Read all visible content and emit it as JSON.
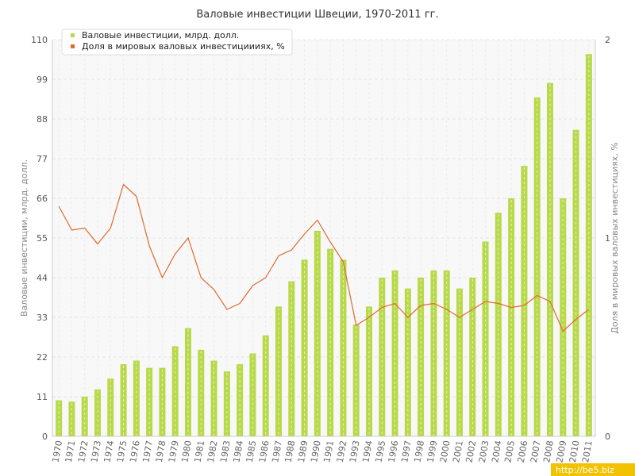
{
  "chart_data": {
    "type": "bar",
    "title": "Валовые инвестиции Швеции, 1970-2011 гг.",
    "ylabel": "Валовые инвестиции, млрд. долл.",
    "y2label": "Доля в мировых валовых инвестициях, %",
    "ylim": [
      0,
      110
    ],
    "y2lim": [
      0,
      2
    ],
    "yticks": [
      "0",
      "11",
      "22",
      "33",
      "44",
      "55",
      "66",
      "77",
      "88",
      "99",
      "110"
    ],
    "y2ticks": [
      "0",
      "1",
      "2"
    ],
    "grid": true,
    "legend_position": "top-left",
    "categories": [
      "1970",
      "1971",
      "1972",
      "1973",
      "1974",
      "1975",
      "1976",
      "1977",
      "1978",
      "1979",
      "1980",
      "1981",
      "1982",
      "1983",
      "1984",
      "1985",
      "1986",
      "1987",
      "1988",
      "1989",
      "1990",
      "1991",
      "1992",
      "1993",
      "1994",
      "1995",
      "1996",
      "1997",
      "1998",
      "1999",
      "2000",
      "2001",
      "2002",
      "2003",
      "2004",
      "2005",
      "2006",
      "2007",
      "2008",
      "2009",
      "2010",
      "2011"
    ],
    "series": [
      {
        "name": "Валовые инвестиции, млрд. долл.",
        "kind": "bar",
        "axis": "left",
        "color": "#b8d94a",
        "values": [
          10,
          9.6,
          11,
          13,
          16,
          20,
          21,
          19,
          19,
          25,
          30,
          24,
          21,
          18,
          20,
          23,
          28,
          36,
          43,
          49,
          57,
          52,
          49,
          31,
          36,
          44,
          46,
          41,
          44,
          46,
          46,
          41,
          44,
          54,
          62,
          66,
          75,
          94,
          98,
          66,
          85,
          106
        ]
      },
      {
        "name": "Доля в мировых валовых инвестициииях, %",
        "kind": "line",
        "axis": "right",
        "color": "#e06a2e",
        "values": [
          1.16,
          1.04,
          1.05,
          0.97,
          1.05,
          1.27,
          1.21,
          0.96,
          0.8,
          0.92,
          1.0,
          0.8,
          0.74,
          0.64,
          0.67,
          0.76,
          0.8,
          0.91,
          0.94,
          1.02,
          1.09,
          0.98,
          0.88,
          0.56,
          0.6,
          0.65,
          0.67,
          0.6,
          0.66,
          0.67,
          0.64,
          0.6,
          0.64,
          0.68,
          0.67,
          0.65,
          0.66,
          0.71,
          0.68,
          0.53,
          0.59,
          0.64
        ]
      }
    ]
  },
  "watermark": "http://be5.biz"
}
